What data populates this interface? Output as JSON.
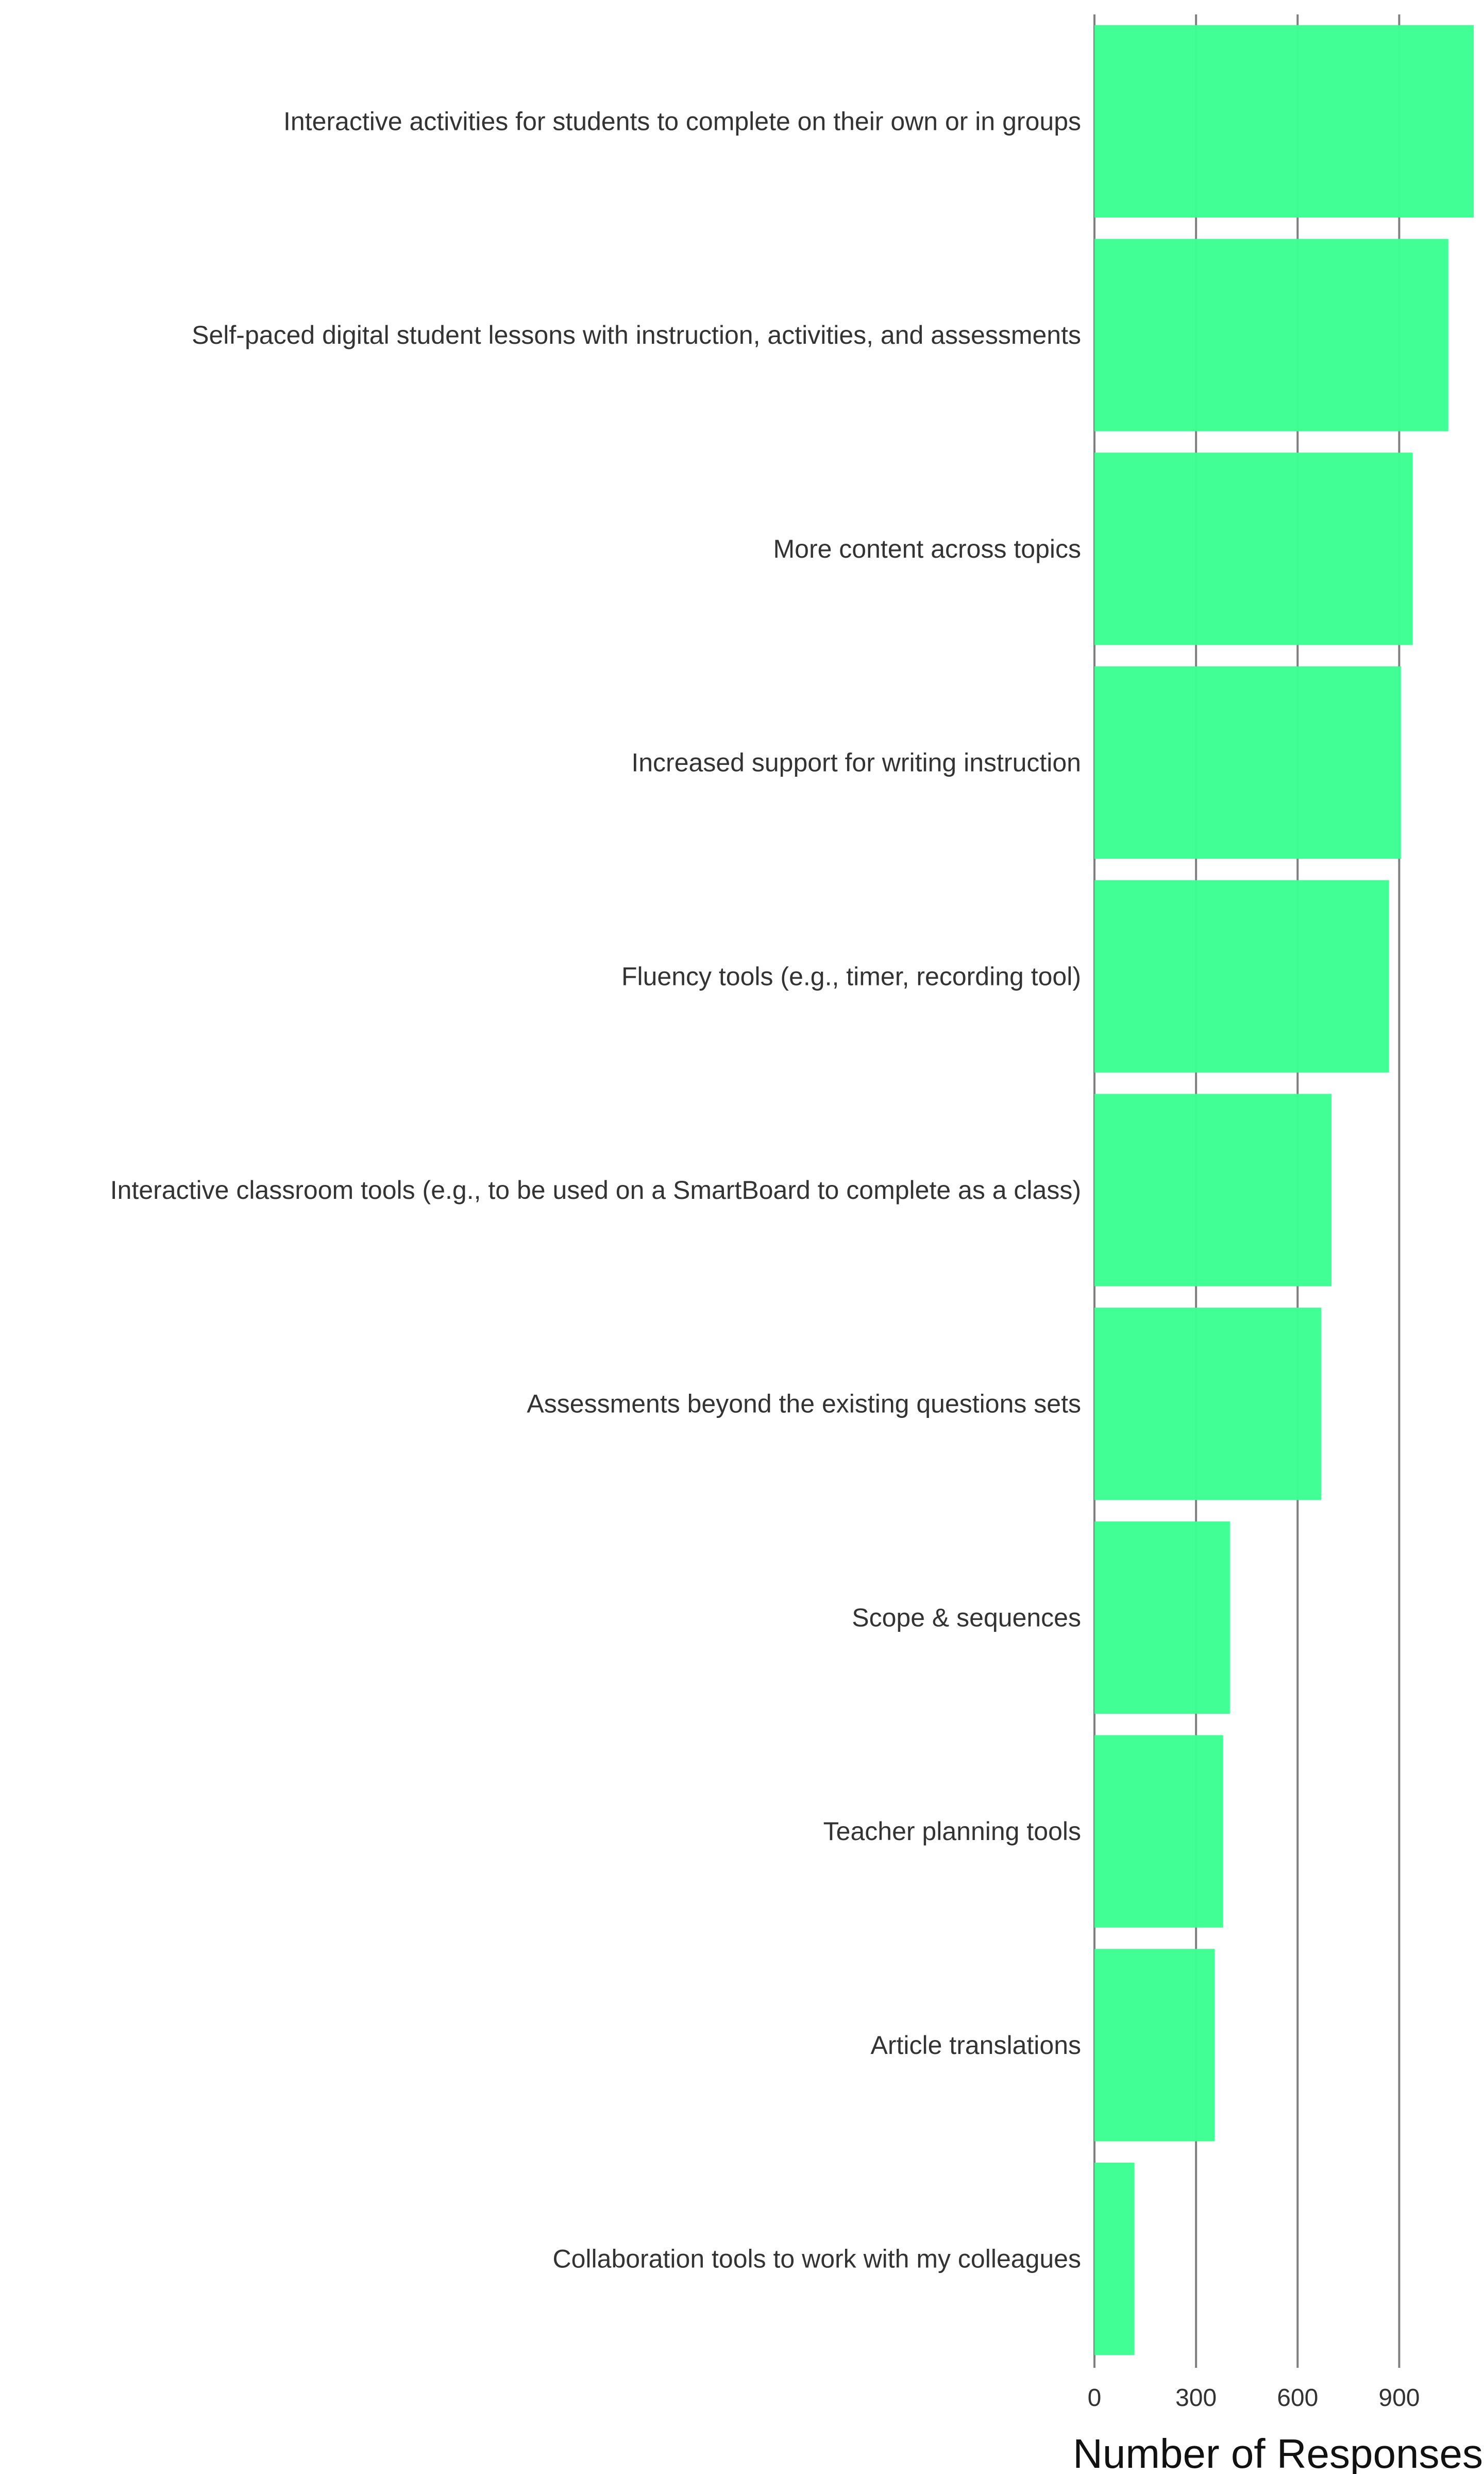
{
  "chart_data": {
    "type": "bar",
    "orientation": "horizontal",
    "categories": [
      "Interactive activities for students to complete on their own or in groups",
      "Self-paced digital student lessons with instruction, activities, and assessments",
      "More content across topics",
      "Increased support for writing instruction",
      "Fluency tools (e.g., timer, recording tool)",
      "Interactive classroom tools (e.g., to be used on a SmartBoard to complete as a class)",
      "Assessments beyond the existing questions sets",
      "Scope & sequences",
      "Teacher planning tools",
      "Article translations",
      "Collaboration tools to work with my colleagues"
    ],
    "values": [
      1120,
      1045,
      940,
      905,
      870,
      700,
      670,
      400,
      380,
      355,
      118
    ],
    "xlabel": "Number of Responses",
    "ylabel": "",
    "title": "",
    "xlim": [
      0,
      1120
    ],
    "xticks": [
      0,
      300,
      600,
      900
    ],
    "grid": "vertical",
    "bar_color": "#3dff92",
    "grid_color": "#7f7f7f"
  }
}
